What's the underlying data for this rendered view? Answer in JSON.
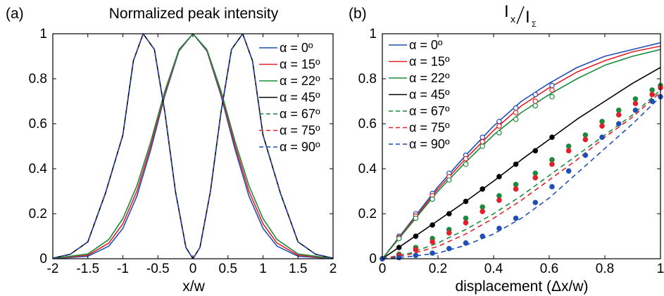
{
  "chart_data": [
    {
      "type": "line",
      "panel_label": "(a)",
      "title": "Normalized peak intensity",
      "xlabel": "x/w",
      "ylabel": "",
      "xlim": [
        -2,
        2
      ],
      "ylim": [
        0,
        1
      ],
      "xticks": [
        "-2",
        "-1.5",
        "-1",
        "-0.5",
        "0",
        "0.5",
        "1",
        "1.5",
        "2"
      ],
      "yticks": [
        "0",
        "0.2",
        "0.4",
        "0.6",
        "0.8",
        "1"
      ],
      "legend_position": "top-right",
      "grid": false,
      "series": [
        {
          "name": "α = 0º",
          "color": "#1f4fb5",
          "style": "solid",
          "x": [
            -2,
            -1.5,
            -1.2,
            -1,
            -0.8,
            -0.6,
            -0.4,
            -0.2,
            0,
            0.2,
            0.4,
            0.6,
            0.8,
            1,
            1.2,
            1.5,
            2
          ],
          "y": [
            0.0003,
            0.0111,
            0.0561,
            0.1353,
            0.278,
            0.4868,
            0.7261,
            0.9231,
            1,
            0.9231,
            0.7261,
            0.4868,
            0.278,
            0.1353,
            0.0561,
            0.0111,
            0.0003
          ]
        },
        {
          "name": "α = 15º",
          "color": "#e3202a",
          "style": "solid",
          "x": [
            -2,
            -1.5,
            -1.2,
            -1,
            -0.8,
            -0.6,
            -0.4,
            -0.2,
            0,
            0.2,
            0.4,
            0.6,
            0.8,
            1,
            1.2,
            1.5,
            2
          ],
          "y": [
            0.0006,
            0.0156,
            0.0697,
            0.1555,
            0.3001,
            0.5041,
            0.7359,
            0.9262,
            1,
            0.9262,
            0.7359,
            0.5041,
            0.3001,
            0.1555,
            0.0697,
            0.0156,
            0.0006
          ]
        },
        {
          "name": "α = 22º",
          "color": "#1c8a3c",
          "style": "solid",
          "x": [
            -2,
            -1.5,
            -1.2,
            -1,
            -0.8,
            -0.6,
            -0.4,
            -0.2,
            0,
            0.2,
            0.4,
            0.6,
            0.8,
            1,
            1.2,
            1.5,
            2
          ],
          "y": [
            0.001,
            0.0213,
            0.0857,
            0.1785,
            0.3241,
            0.5223,
            0.7461,
            0.9294,
            1,
            0.9294,
            0.7461,
            0.5223,
            0.3241,
            0.1785,
            0.0857,
            0.0213,
            0.001
          ]
        },
        {
          "name": "α = 45º",
          "color": "#000000",
          "style": "solid",
          "x": [
            -2,
            -1.75,
            -1.5,
            -1.25,
            -1,
            -0.85,
            -0.71,
            -0.55,
            -0.4,
            -0.25,
            -0.1,
            0,
            0.1,
            0.25,
            0.4,
            0.55,
            0.71,
            0.85,
            1,
            1.25,
            1.5,
            1.75,
            2
          ],
          "y": [
            0.0027,
            0.02,
            0.075,
            0.29,
            0.55,
            0.88,
            1,
            0.93,
            0.65,
            0.3,
            0.05,
            0,
            0.05,
            0.3,
            0.65,
            0.93,
            1,
            0.88,
            0.55,
            0.29,
            0.075,
            0.02,
            0.0027
          ]
        },
        {
          "name": "α = 67º",
          "color": "#1c8a3c",
          "style": "dashed",
          "x": [
            -2,
            -1.75,
            -1.5,
            -1.25,
            -1,
            -0.85,
            -0.71,
            -0.55,
            -0.4,
            -0.25,
            -0.1,
            0,
            0.1,
            0.25,
            0.4,
            0.55,
            0.71,
            0.85,
            1,
            1.25,
            1.5,
            1.75,
            2
          ],
          "y": [
            0.0027,
            0.02,
            0.075,
            0.29,
            0.55,
            0.88,
            1,
            0.93,
            0.65,
            0.3,
            0.05,
            0,
            0.05,
            0.3,
            0.65,
            0.93,
            1,
            0.88,
            0.55,
            0.29,
            0.075,
            0.02,
            0.0027
          ]
        },
        {
          "name": "α = 75º",
          "color": "#e3202a",
          "style": "dashed",
          "x": [
            -2,
            -1.75,
            -1.5,
            -1.25,
            -1,
            -0.85,
            -0.71,
            -0.55,
            -0.4,
            -0.25,
            -0.1,
            0,
            0.1,
            0.25,
            0.4,
            0.55,
            0.71,
            0.85,
            1,
            1.25,
            1.5,
            1.75,
            2
          ],
          "y": [
            0.0027,
            0.02,
            0.075,
            0.29,
            0.55,
            0.88,
            1,
            0.93,
            0.65,
            0.3,
            0.05,
            0,
            0.05,
            0.3,
            0.65,
            0.93,
            1,
            0.88,
            0.55,
            0.29,
            0.075,
            0.02,
            0.0027
          ]
        },
        {
          "name": "α = 90º",
          "color": "#1f4fb5",
          "style": "dashed",
          "x": [
            -2,
            -1.75,
            -1.5,
            -1.25,
            -1,
            -0.85,
            -0.71,
            -0.55,
            -0.4,
            -0.25,
            -0.1,
            0,
            0.1,
            0.25,
            0.4,
            0.55,
            0.71,
            0.85,
            1,
            1.25,
            1.5,
            1.75,
            2
          ],
          "y": [
            0.0027,
            0.02,
            0.075,
            0.29,
            0.55,
            0.88,
            1,
            0.93,
            0.65,
            0.3,
            0.05,
            0,
            0.05,
            0.3,
            0.65,
            0.93,
            1,
            0.88,
            0.55,
            0.29,
            0.075,
            0.02,
            0.0027
          ]
        }
      ]
    },
    {
      "type": "line",
      "panel_label": "(b)",
      "title_main": "I",
      "title_sub": "x",
      "title_denom": "I",
      "title_denom_sub": "Σ",
      "xlabel": "displacement (Δx/w)",
      "ylabel": "",
      "xlim": [
        0,
        1
      ],
      "ylim": [
        0,
        1
      ],
      "xticks": [
        "0",
        "0.2",
        "0.4",
        "0.6",
        "0.8",
        "1"
      ],
      "yticks": [
        "0",
        "0.2",
        "0.4",
        "0.6",
        "0.8",
        "1"
      ],
      "legend_position": "top-left",
      "grid": false,
      "series": [
        {
          "name": "α = 0º",
          "color": "#1f4fb5",
          "style": "solid",
          "x": [
            0,
            0.1,
            0.2,
            0.3,
            0.4,
            0.5,
            0.6,
            0.7,
            0.8,
            0.9,
            1
          ],
          "y": [
            0,
            0.16,
            0.32,
            0.46,
            0.59,
            0.7,
            0.78,
            0.85,
            0.9,
            0.93,
            0.96
          ]
        },
        {
          "name": "α = 15º",
          "color": "#e3202a",
          "style": "solid",
          "x": [
            0,
            0.1,
            0.2,
            0.3,
            0.4,
            0.5,
            0.6,
            0.7,
            0.8,
            0.9,
            1
          ],
          "y": [
            0,
            0.155,
            0.31,
            0.445,
            0.57,
            0.68,
            0.76,
            0.83,
            0.88,
            0.92,
            0.945
          ]
        },
        {
          "name": "α = 22º",
          "color": "#1c8a3c",
          "style": "solid",
          "x": [
            0,
            0.1,
            0.2,
            0.3,
            0.4,
            0.5,
            0.6,
            0.7,
            0.8,
            0.9,
            1
          ],
          "y": [
            0,
            0.15,
            0.3,
            0.43,
            0.55,
            0.65,
            0.73,
            0.8,
            0.86,
            0.9,
            0.93
          ]
        },
        {
          "name": "α = 45º",
          "color": "#000000",
          "style": "solid",
          "x": [
            0,
            0.1,
            0.2,
            0.3,
            0.4,
            0.5,
            0.6,
            0.7,
            0.8,
            0.9,
            1
          ],
          "y": [
            0,
            0.085,
            0.17,
            0.255,
            0.345,
            0.44,
            0.53,
            0.62,
            0.7,
            0.78,
            0.85
          ]
        },
        {
          "name": "α = 67º",
          "color": "#1c8a3c",
          "style": "dashed",
          "x": [
            0,
            0.1,
            0.2,
            0.3,
            0.4,
            0.5,
            0.6,
            0.7,
            0.8,
            0.9,
            1
          ],
          "y": [
            0,
            0.025,
            0.07,
            0.13,
            0.2,
            0.28,
            0.37,
            0.46,
            0.55,
            0.64,
            0.75
          ]
        },
        {
          "name": "α = 75º",
          "color": "#e3202a",
          "style": "dashed",
          "x": [
            0,
            0.1,
            0.2,
            0.3,
            0.4,
            0.5,
            0.6,
            0.7,
            0.8,
            0.9,
            1
          ],
          "y": [
            0,
            0.02,
            0.055,
            0.11,
            0.18,
            0.26,
            0.35,
            0.44,
            0.54,
            0.63,
            0.74
          ]
        },
        {
          "name": "α = 90º",
          "color": "#1f4fb5",
          "style": "dashed",
          "x": [
            0,
            0.1,
            0.2,
            0.3,
            0.4,
            0.5,
            0.6,
            0.7,
            0.8,
            0.9,
            1
          ],
          "y": [
            0,
            0.01,
            0.025,
            0.06,
            0.11,
            0.18,
            0.27,
            0.38,
            0.49,
            0.6,
            0.72
          ]
        }
      ],
      "markers": [
        {
          "name": "α = 0º",
          "color": "#1f4fb5",
          "fill": "open",
          "x": [
            0,
            0.06,
            0.12,
            0.18,
            0.24,
            0.3,
            0.36,
            0.42,
            0.48,
            0.55,
            0.61
          ],
          "y": [
            0,
            0.1,
            0.2,
            0.29,
            0.38,
            0.46,
            0.54,
            0.61,
            0.67,
            0.73,
            0.77
          ]
        },
        {
          "name": "α = 15º",
          "color": "#e3202a",
          "fill": "open",
          "x": [
            0,
            0.06,
            0.12,
            0.18,
            0.24,
            0.3,
            0.36,
            0.42,
            0.48,
            0.55,
            0.61
          ],
          "y": [
            0,
            0.095,
            0.19,
            0.28,
            0.365,
            0.445,
            0.52,
            0.59,
            0.65,
            0.7,
            0.75
          ]
        },
        {
          "name": "α = 22º",
          "color": "#1c8a3c",
          "fill": "open",
          "x": [
            0,
            0.06,
            0.12,
            0.18,
            0.24,
            0.3,
            0.36,
            0.42,
            0.48,
            0.55,
            0.61
          ],
          "y": [
            0,
            0.09,
            0.18,
            0.265,
            0.35,
            0.42,
            0.5,
            0.56,
            0.62,
            0.68,
            0.72
          ]
        },
        {
          "name": "α = 45º",
          "color": "#000000",
          "fill": "filled",
          "x": [
            0,
            0.06,
            0.12,
            0.18,
            0.24,
            0.3,
            0.36,
            0.42,
            0.48,
            0.55,
            0.61
          ],
          "y": [
            0,
            0.05,
            0.1,
            0.15,
            0.2,
            0.255,
            0.31,
            0.365,
            0.42,
            0.48,
            0.54
          ]
        },
        {
          "name": "α = 67º",
          "color": "#1c8a3c",
          "fill": "filled",
          "x": [
            0,
            0.06,
            0.12,
            0.18,
            0.24,
            0.3,
            0.36,
            0.42,
            0.48,
            0.55,
            0.61,
            0.67,
            0.73,
            0.79,
            0.85,
            0.91,
            0.97,
            1
          ],
          "y": [
            0,
            0.02,
            0.05,
            0.09,
            0.13,
            0.18,
            0.23,
            0.28,
            0.33,
            0.38,
            0.44,
            0.5,
            0.55,
            0.61,
            0.66,
            0.71,
            0.75,
            0.77
          ]
        },
        {
          "name": "α = 75º",
          "color": "#e3202a",
          "fill": "filled",
          "x": [
            0,
            0.06,
            0.12,
            0.18,
            0.24,
            0.3,
            0.36,
            0.42,
            0.48,
            0.55,
            0.61,
            0.67,
            0.73,
            0.79,
            0.85,
            0.91,
            0.97,
            1
          ],
          "y": [
            0,
            0.015,
            0.04,
            0.075,
            0.115,
            0.16,
            0.21,
            0.26,
            0.31,
            0.36,
            0.42,
            0.48,
            0.53,
            0.59,
            0.64,
            0.69,
            0.73,
            0.76
          ]
        },
        {
          "name": "α = 90º",
          "color": "#1f4fb5",
          "fill": "filled",
          "x": [
            0,
            0.06,
            0.12,
            0.18,
            0.24,
            0.3,
            0.36,
            0.42,
            0.48,
            0.55,
            0.61,
            0.67,
            0.73,
            0.79,
            0.85,
            0.91,
            0.97,
            1
          ],
          "y": [
            0,
            0.005,
            0.015,
            0.025,
            0.045,
            0.07,
            0.1,
            0.135,
            0.18,
            0.25,
            0.32,
            0.39,
            0.46,
            0.54,
            0.6,
            0.66,
            0.7,
            0.72
          ]
        }
      ]
    }
  ]
}
